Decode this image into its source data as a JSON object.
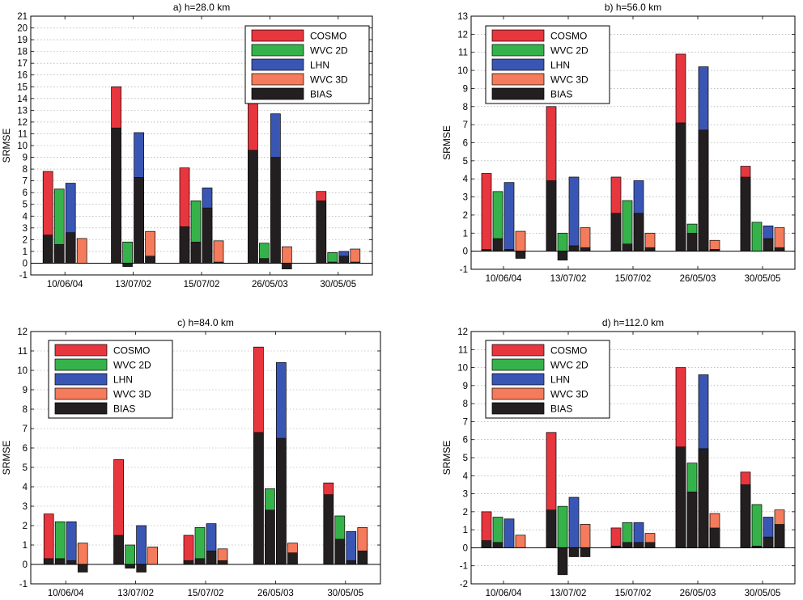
{
  "colors": {
    "COSMO": "#e8363f",
    "WVC 2D": "#35b34a",
    "LHN": "#3a56b5",
    "WVC 3D": "#f47b5b",
    "BIAS": "#231f20"
  },
  "chart_data": [
    {
      "type": "bar",
      "title": "a)  h=28.0 km",
      "ylabel": "SRMSE",
      "ylim": [
        -1,
        21
      ],
      "yticks": [
        -1,
        0,
        1,
        2,
        3,
        4,
        5,
        6,
        7,
        8,
        9,
        10,
        11,
        12,
        13,
        14,
        15,
        16,
        17,
        18,
        19,
        20,
        21
      ],
      "categories": [
        "10/06/04",
        "13/07/02",
        "15/07/02",
        "26/05/03",
        "30/05/05"
      ],
      "legend": [
        "COSMO",
        "WVC 2D",
        "LHN",
        "WVC 3D",
        "BIAS"
      ],
      "legend_position": "top-right",
      "series": [
        {
          "name": "COSMO",
          "values": [
            7.8,
            15.0,
            8.1,
            13.8,
            6.1
          ],
          "bias": [
            2.4,
            11.5,
            3.1,
            9.6,
            5.3
          ]
        },
        {
          "name": "WVC 2D",
          "values": [
            6.3,
            1.8,
            5.3,
            1.7,
            0.9
          ],
          "bias": [
            1.6,
            -0.3,
            1.8,
            0.4,
            0.1
          ]
        },
        {
          "name": "LHN",
          "values": [
            6.8,
            11.1,
            6.4,
            12.7,
            1.0
          ],
          "bias": [
            2.6,
            7.3,
            4.7,
            9.0,
            0.6
          ]
        },
        {
          "name": "WVC 3D",
          "values": [
            2.1,
            2.7,
            1.9,
            1.4,
            1.2
          ],
          "bias": [
            0.0,
            0.6,
            0.1,
            -0.5,
            0.1
          ]
        }
      ]
    },
    {
      "type": "bar",
      "title": "b)  h=56.0 km",
      "ylabel": "SRMSE",
      "ylim": [
        -1,
        13
      ],
      "yticks": [
        -1,
        0,
        1,
        2,
        3,
        4,
        5,
        6,
        7,
        8,
        9,
        10,
        11,
        12,
        13
      ],
      "categories": [
        "10/06/04",
        "13/07/02",
        "15/07/02",
        "26/05/03",
        "30/05/05"
      ],
      "legend": [
        "COSMO",
        "WVC 2D",
        "LHN",
        "WVC 3D",
        "BIAS"
      ],
      "legend_position": "top-left",
      "series": [
        {
          "name": "COSMO",
          "values": [
            4.3,
            8.0,
            4.1,
            10.9,
            4.7
          ],
          "bias": [
            0.1,
            3.9,
            2.1,
            7.1,
            4.1
          ]
        },
        {
          "name": "WVC 2D",
          "values": [
            3.3,
            1.0,
            2.8,
            1.5,
            1.6
          ],
          "bias": [
            0.7,
            -0.5,
            0.4,
            1.0,
            0.0
          ]
        },
        {
          "name": "LHN",
          "values": [
            3.8,
            4.1,
            3.9,
            10.2,
            1.4
          ],
          "bias": [
            0.1,
            0.3,
            2.1,
            6.7,
            0.7
          ]
        },
        {
          "name": "WVC 3D",
          "values": [
            1.1,
            1.3,
            1.0,
            0.6,
            1.3
          ],
          "bias": [
            -0.4,
            0.2,
            0.2,
            0.1,
            0.2
          ]
        }
      ]
    },
    {
      "type": "bar",
      "title": "c)  h=84.0 km",
      "ylabel": "SRMSE",
      "ylim": [
        -1,
        12
      ],
      "yticks": [
        -1,
        0,
        1,
        2,
        3,
        4,
        5,
        6,
        7,
        8,
        9,
        10,
        11,
        12
      ],
      "categories": [
        "10/06/04",
        "13/07/02",
        "15/07/02",
        "26/05/03",
        "30/05/05"
      ],
      "legend": [
        "COSMO",
        "WVC 2D",
        "LHN",
        "WVC 3D",
        "BIAS"
      ],
      "legend_position": "top-left",
      "series": [
        {
          "name": "COSMO",
          "values": [
            2.6,
            5.4,
            1.5,
            11.2,
            4.2
          ],
          "bias": [
            0.3,
            1.5,
            0.2,
            6.8,
            3.6
          ]
        },
        {
          "name": "WVC 2D",
          "values": [
            2.2,
            1.0,
            1.9,
            3.9,
            2.5
          ],
          "bias": [
            0.3,
            -0.2,
            0.3,
            2.8,
            1.3
          ]
        },
        {
          "name": "LHN",
          "values": [
            2.2,
            2.0,
            2.1,
            10.4,
            1.7
          ],
          "bias": [
            0.2,
            -0.4,
            0.7,
            6.5,
            0.2
          ]
        },
        {
          "name": "WVC 3D",
          "values": [
            1.1,
            0.9,
            0.8,
            1.1,
            1.9
          ],
          "bias": [
            -0.4,
            0.0,
            0.2,
            0.6,
            0.7
          ]
        }
      ]
    },
    {
      "type": "bar",
      "title": "d)  h=112.0 km",
      "ylabel": "SRMSE",
      "ylim": [
        -2,
        12
      ],
      "yticks": [
        -2,
        -1,
        0,
        1,
        2,
        3,
        4,
        5,
        6,
        7,
        8,
        9,
        10,
        11,
        12
      ],
      "categories": [
        "10/06/04",
        "13/07/02",
        "15/07/02",
        "26/05/03",
        "30/05/05"
      ],
      "legend": [
        "COSMO",
        "WVC 2D",
        "LHN",
        "WVC 3D",
        "BIAS"
      ],
      "legend_position": "top-left",
      "series": [
        {
          "name": "COSMO",
          "values": [
            2.0,
            6.4,
            1.1,
            10.0,
            4.2
          ],
          "bias": [
            0.4,
            2.1,
            0.1,
            5.6,
            3.5
          ]
        },
        {
          "name": "WVC 2D",
          "values": [
            1.7,
            2.3,
            1.4,
            4.7,
            2.4
          ],
          "bias": [
            0.3,
            -1.5,
            0.3,
            3.1,
            0.1
          ]
        },
        {
          "name": "LHN",
          "values": [
            1.6,
            2.8,
            1.4,
            9.6,
            1.7
          ],
          "bias": [
            0.0,
            -0.5,
            0.3,
            5.5,
            0.6
          ]
        },
        {
          "name": "WVC 3D",
          "values": [
            0.7,
            1.3,
            0.8,
            1.9,
            2.1
          ],
          "bias": [
            0.0,
            -0.5,
            0.3,
            1.1,
            1.3
          ]
        }
      ]
    }
  ]
}
